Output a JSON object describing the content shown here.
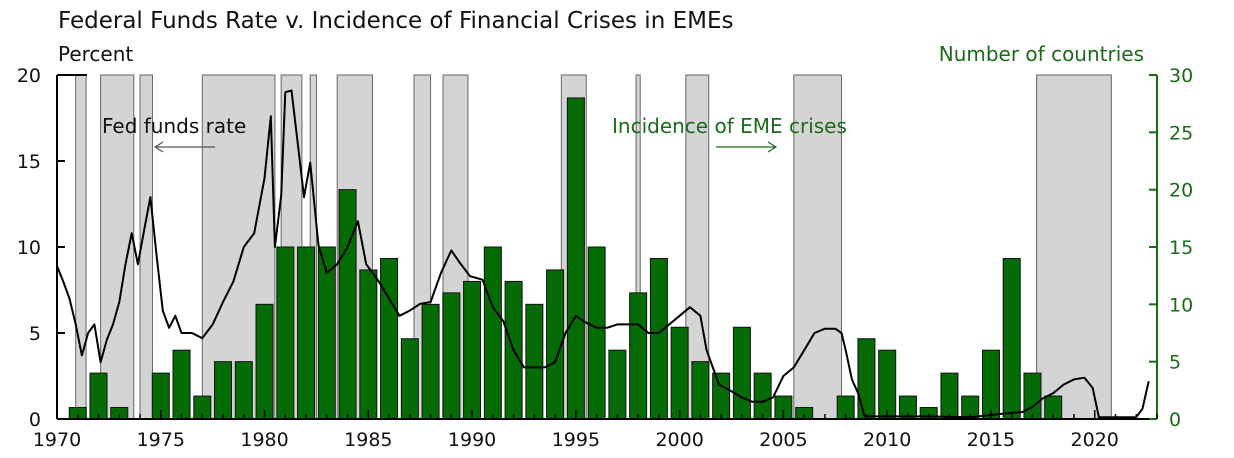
{
  "chart_data": {
    "type": "bar+line",
    "title": "Federal Funds Rate v. Incidence of Financial Crises in EMEs",
    "left_axis": {
      "label": "Percent",
      "ylim": [
        0,
        20
      ],
      "ticks": [
        0,
        5,
        10,
        15,
        20
      ]
    },
    "right_axis": {
      "label": "Number of countries",
      "ylim": [
        0,
        30
      ],
      "ticks": [
        0,
        5,
        10,
        15,
        20,
        25,
        30
      ]
    },
    "x_axis": {
      "xlim": [
        1970,
        2023
      ],
      "ticks": [
        1970,
        1975,
        1980,
        1985,
        1990,
        1995,
        2000,
        2005,
        2010,
        2015,
        2020
      ]
    },
    "annotations": [
      {
        "text": "Fed funds rate",
        "arrow": "left"
      },
      {
        "text": "Incidence of EME crises",
        "arrow": "right"
      }
    ],
    "recession_shading": [
      [
        1970.9,
        1971.4
      ],
      [
        1972.1,
        1973.7
      ],
      [
        1974.0,
        1974.6
      ],
      [
        1977.0,
        1980.5
      ],
      [
        1980.8,
        1981.8
      ],
      [
        1982.2,
        1982.5
      ],
      [
        1983.5,
        1985.2
      ],
      [
        1987.2,
        1988.0
      ],
      [
        1988.6,
        1989.8
      ],
      [
        1994.3,
        1995.5
      ],
      [
        1997.9,
        1998.1
      ],
      [
        2000.3,
        2001.4
      ],
      [
        2005.5,
        2007.8
      ],
      [
        2017.2,
        2020.8
      ]
    ],
    "bar_series": {
      "name": "Incidence of EME crises",
      "axis": "right",
      "color": "#056b05",
      "x": [
        1971,
        1972,
        1973,
        1975,
        1976,
        1977,
        1978,
        1979,
        1980,
        1981,
        1982,
        1983,
        1984,
        1985,
        1986,
        1987,
        1988,
        1989,
        1990,
        1991,
        1992,
        1993,
        1994,
        1995,
        1996,
        1997,
        1998,
        1999,
        2000,
        2001,
        2002,
        2003,
        2004,
        2005,
        2006,
        2008,
        2009,
        2010,
        2011,
        2012,
        2013,
        2014,
        2015,
        2016,
        2017,
        2018,
        2019
      ],
      "values": [
        1,
        4,
        1,
        4,
        6,
        2,
        5,
        5,
        10,
        15,
        15,
        15,
        20,
        13,
        14,
        7,
        10,
        11,
        12,
        15,
        12,
        10,
        13,
        28,
        15,
        6,
        11,
        14,
        8,
        5,
        4,
        8,
        4,
        2,
        1,
        2,
        7,
        6,
        2,
        1,
        4,
        2,
        6,
        14,
        4,
        2,
        0
      ]
    },
    "line_series": {
      "name": "Fed funds rate",
      "axis": "left",
      "color": "#000000",
      "x": [
        1970.0,
        1970.3,
        1970.6,
        1970.9,
        1971.2,
        1971.5,
        1971.8,
        1972.1,
        1972.4,
        1972.7,
        1973.0,
        1973.3,
        1973.6,
        1973.9,
        1974.2,
        1974.5,
        1974.8,
        1975.1,
        1975.4,
        1975.7,
        1976.0,
        1976.5,
        1977.0,
        1977.5,
        1978.0,
        1978.5,
        1979.0,
        1979.5,
        1980.0,
        1980.3,
        1980.5,
        1980.8,
        1981.0,
        1981.3,
        1981.6,
        1981.9,
        1982.2,
        1982.6,
        1983.0,
        1983.5,
        1984.0,
        1984.5,
        1984.9,
        1985.5,
        1986.0,
        1986.5,
        1987.0,
        1987.5,
        1988.0,
        1988.5,
        1989.0,
        1989.4,
        1989.9,
        1990.5,
        1991.0,
        1991.5,
        1992.0,
        1992.5,
        1993.0,
        1993.5,
        1994.0,
        1994.5,
        1995.0,
        1995.5,
        1996.0,
        1996.5,
        1997.0,
        1997.5,
        1998.0,
        1998.5,
        1999.0,
        1999.5,
        2000.0,
        2000.5,
        2001.0,
        2001.3,
        2001.6,
        2001.9,
        2002.3,
        2003.0,
        2003.5,
        2004.0,
        2004.5,
        2005.0,
        2005.5,
        2006.0,
        2006.5,
        2007.0,
        2007.5,
        2007.8,
        2008.0,
        2008.3,
        2008.6,
        2008.9,
        2009.0,
        2010.0,
        2012.0,
        2014.0,
        2015.9,
        2016.5,
        2017.0,
        2017.5,
        2018.0,
        2018.5,
        2019.0,
        2019.5,
        2019.9,
        2020.2,
        2021.0,
        2022.0,
        2022.3,
        2022.6
      ],
      "values": [
        8.9,
        8.0,
        7.0,
        5.5,
        3.7,
        5.0,
        5.5,
        3.3,
        4.6,
        5.5,
        6.8,
        9.0,
        10.8,
        9.0,
        11.0,
        12.9,
        9.5,
        6.3,
        5.3,
        6.0,
        5.0,
        5.0,
        4.7,
        5.5,
        6.8,
        8.0,
        10.0,
        10.8,
        14.0,
        17.6,
        10.0,
        13.0,
        19.0,
        19.1,
        16.0,
        12.9,
        14.9,
        10.1,
        8.5,
        9.0,
        10.0,
        11.5,
        9.0,
        8.0,
        7.0,
        6.0,
        6.3,
        6.7,
        6.8,
        8.5,
        9.8,
        9.1,
        8.3,
        8.1,
        6.5,
        5.7,
        4.0,
        3.0,
        3.0,
        3.0,
        3.3,
        5.0,
        6.0,
        5.6,
        5.3,
        5.3,
        5.5,
        5.5,
        5.5,
        5.0,
        5.0,
        5.5,
        6.0,
        6.5,
        6.0,
        4.0,
        3.0,
        2.0,
        1.75,
        1.25,
        1.0,
        1.0,
        1.25,
        2.5,
        3.0,
        4.0,
        5.0,
        5.25,
        5.25,
        5.0,
        4.0,
        2.3,
        1.5,
        0.2,
        0.15,
        0.15,
        0.15,
        0.1,
        0.35,
        0.4,
        0.7,
        1.2,
        1.5,
        2.0,
        2.3,
        2.4,
        1.8,
        0.1,
        0.1,
        0.1,
        0.6,
        2.2
      ]
    }
  }
}
